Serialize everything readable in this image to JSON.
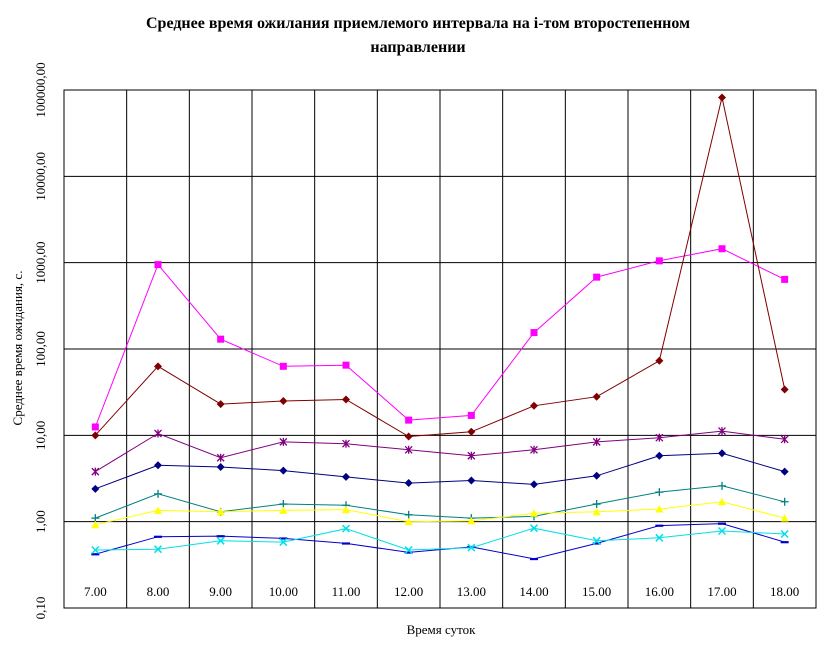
{
  "chart_data": {
    "type": "line",
    "title_lines": [
      "Среднее время ожилания приемлемого интервала на i-том второстепенном",
      "направлении"
    ],
    "xlabel": "Время суток",
    "ylabel": "Среднее время ожидания, с.",
    "categories": [
      "7.00",
      "8.00",
      "9.00",
      "10.00",
      "11.00",
      "12.00",
      "13.00",
      "14.00",
      "15.00",
      "16.00",
      "17.00",
      "18.00"
    ],
    "y_scale": "log",
    "ylim": [
      0.1,
      100000
    ],
    "y_ticks": [
      0.1,
      1,
      10,
      100,
      1000,
      10000,
      100000
    ],
    "y_tick_labels": [
      "0,10",
      "1,00",
      "10,00",
      "100,00",
      "1000,00",
      "10000,00",
      "100000,00"
    ],
    "grid": true,
    "series": [
      {
        "color": "#ff00ff",
        "marker": "square",
        "values": [
          12.5,
          950,
          130,
          63,
          65,
          15,
          17,
          155,
          680,
          1050,
          1450,
          640
        ]
      },
      {
        "color": "#800000",
        "marker": "diamond",
        "values": [
          10,
          63,
          23,
          25,
          26,
          9.7,
          11,
          22,
          28,
          73,
          82000,
          34
        ]
      },
      {
        "color": "#800080",
        "marker": "star",
        "values": [
          3.8,
          10.5,
          5.5,
          8.4,
          8.0,
          6.8,
          5.8,
          6.8,
          8.4,
          9.4,
          11.2,
          9.0
        ]
      },
      {
        "color": "#000080",
        "marker": "diamond",
        "values": [
          2.4,
          4.5,
          4.3,
          3.9,
          3.3,
          2.8,
          3.0,
          2.7,
          3.4,
          5.8,
          6.2,
          3.8
        ]
      },
      {
        "color": "#008080",
        "marker": "plus",
        "values": [
          1.1,
          2.1,
          1.3,
          1.6,
          1.55,
          1.2,
          1.1,
          1.15,
          1.6,
          2.2,
          2.6,
          1.7
        ]
      },
      {
        "color": "#ffff00",
        "marker": "triangle",
        "values": [
          0.92,
          1.35,
          1.3,
          1.35,
          1.38,
          1.0,
          1.02,
          1.25,
          1.3,
          1.4,
          1.7,
          1.1
        ]
      },
      {
        "color": "#0000cc",
        "marker": "dash",
        "values": [
          0.42,
          0.67,
          0.68,
          0.64,
          0.56,
          0.44,
          0.51,
          0.37,
          0.56,
          0.9,
          0.95,
          0.58
        ]
      },
      {
        "color": "#00e0e8",
        "marker": "cross",
        "values": [
          0.47,
          0.48,
          0.6,
          0.58,
          0.83,
          0.47,
          0.5,
          0.84,
          0.6,
          0.65,
          0.78,
          0.72
        ]
      }
    ]
  }
}
